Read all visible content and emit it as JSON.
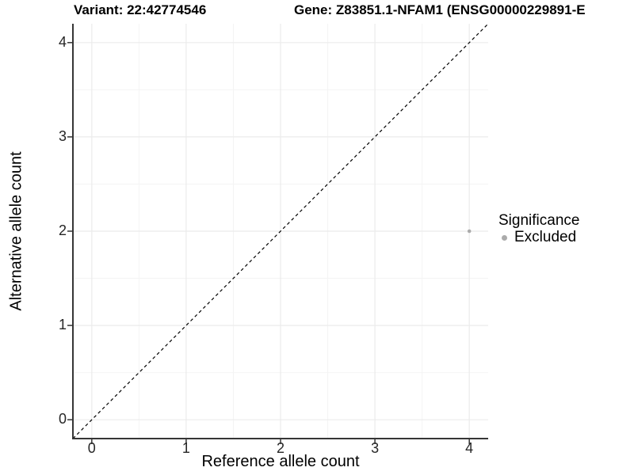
{
  "colors": {
    "background": "#FFFFFF",
    "grid_major": "#EBEBEB",
    "grid_minor": "#F4F4F4",
    "axis_line": "#363636",
    "tick_mark": "#333333",
    "text": "#000000",
    "point": "#ABABAB"
  },
  "chart_data": {
    "type": "scatter",
    "title_variant": "Variant: 22:42774546",
    "title_gene": "Gene: Z83851.1-NFAM1 (ENSG00000229891-E",
    "xlabel": "Reference allele count",
    "ylabel": "Alternative allele count",
    "xlim": [
      -0.2,
      4.2
    ],
    "ylim": [
      -0.2,
      4.2
    ],
    "x_ticks": [
      0,
      1,
      2,
      3,
      4
    ],
    "y_ticks": [
      0,
      1,
      2,
      3,
      4
    ],
    "grid": {
      "major": true,
      "minor": true
    },
    "reference_line": {
      "kind": "identity y=x",
      "style": "dashed",
      "color": "#000000"
    },
    "series": [
      {
        "name": "Excluded",
        "color": "#ABABAB",
        "points": [
          {
            "x": 4,
            "y": 2
          }
        ]
      }
    ],
    "legend": {
      "title": "Significance",
      "position": "right",
      "entries": [
        {
          "label": "Excluded",
          "color": "#ABABAB"
        }
      ]
    }
  }
}
